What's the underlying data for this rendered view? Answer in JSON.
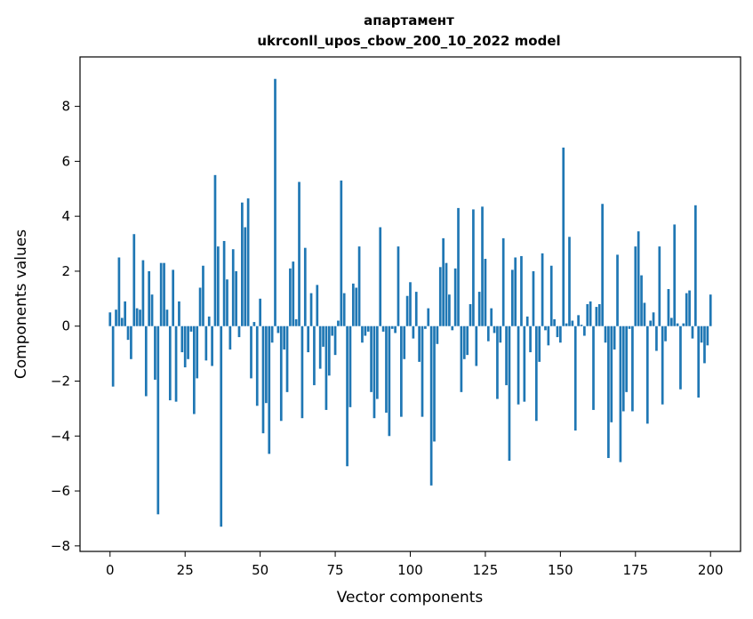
{
  "chart_data": {
    "type": "bar",
    "title": "апартамент",
    "subtitle": "ukrconll_upos_cbow_200_10_2022 model",
    "xlabel": "Vector components",
    "ylabel": "Components values",
    "xlim": [
      -10,
      210
    ],
    "ylim": [
      -8.2,
      9.8
    ],
    "xticks": [
      0,
      25,
      50,
      75,
      100,
      125,
      150,
      175,
      200
    ],
    "yticks": [
      -8,
      -6,
      -4,
      -2,
      0,
      2,
      4,
      6,
      8
    ],
    "xtick_labels": [
      "0",
      "25",
      "50",
      "75",
      "100",
      "125",
      "150",
      "175",
      "200"
    ],
    "ytick_labels": [
      "−8",
      "−6",
      "−4",
      "−2",
      "0",
      "2",
      "4",
      "6",
      "8"
    ],
    "color": "#1f77b4",
    "grid": false,
    "values": [
      0.5,
      -2.2,
      0.6,
      2.5,
      0.3,
      0.9,
      -0.5,
      -1.2,
      3.35,
      0.65,
      0.6,
      2.4,
      -2.55,
      2.0,
      1.15,
      -1.95,
      -6.85,
      2.3,
      2.3,
      0.6,
      -2.7,
      2.05,
      -2.75,
      0.9,
      -0.95,
      -1.5,
      -1.2,
      -0.2,
      -3.2,
      -1.9,
      1.4,
      2.2,
      -1.25,
      0.35,
      -1.45,
      5.5,
      2.9,
      -7.3,
      3.1,
      1.7,
      -0.85,
      2.8,
      2.0,
      -0.4,
      4.5,
      3.6,
      4.65,
      -1.9,
      0.15,
      -2.9,
      1.0,
      -3.9,
      -2.8,
      -4.65,
      -0.6,
      9.0,
      -0.25,
      -3.45,
      -0.85,
      -2.4,
      2.1,
      2.35,
      0.25,
      5.25,
      -3.35,
      2.85,
      -0.95,
      1.2,
      -2.15,
      1.5,
      -1.55,
      -0.75,
      -3.05,
      -1.8,
      -0.35,
      -1.05,
      0.2,
      5.3,
      1.2,
      -5.1,
      -2.95,
      1.55,
      1.4,
      2.9,
      -0.6,
      -0.35,
      -0.2,
      -2.4,
      -3.35,
      -2.65,
      3.6,
      -0.2,
      -3.15,
      -4.0,
      -0.1,
      -0.25,
      2.9,
      -3.3,
      -1.2,
      1.1,
      1.6,
      -0.45,
      1.25,
      -1.3,
      -3.3,
      -0.1,
      0.65,
      -5.8,
      -4.2,
      -0.65,
      2.15,
      3.2,
      2.3,
      1.15,
      -0.15,
      2.1,
      4.3,
      -2.4,
      -1.2,
      -1.05,
      0.8,
      4.25,
      -1.45,
      1.25,
      4.35,
      2.45,
      -0.55,
      0.65,
      -0.25,
      -2.65,
      -0.6,
      3.2,
      -2.15,
      -4.9,
      2.05,
      2.5,
      -2.85,
      2.55,
      -2.75,
      0.35,
      -0.95,
      2.0,
      -3.45,
      -1.3,
      2.65,
      -0.15,
      -0.7,
      2.2,
      0.25,
      -0.4,
      -0.6,
      6.5,
      0.1,
      3.25,
      0.2,
      -3.8,
      0.4,
      0.05,
      -0.35,
      0.8,
      0.9,
      -3.05,
      0.7,
      0.8,
      4.45,
      -0.6,
      -4.8,
      -3.5,
      -0.85,
      2.6,
      -4.95,
      -3.1,
      -2.4,
      -0.1,
      -3.1,
      2.9,
      3.45,
      1.85,
      0.85,
      -3.55,
      0.2,
      0.5,
      -0.9,
      2.9,
      -2.85,
      -0.55,
      1.35,
      0.3,
      3.7,
      0.1,
      -2.3,
      0.1,
      1.2,
      1.3,
      -0.45,
      4.4,
      -2.6,
      -0.6,
      -1.35,
      -0.7,
      1.15
    ]
  }
}
